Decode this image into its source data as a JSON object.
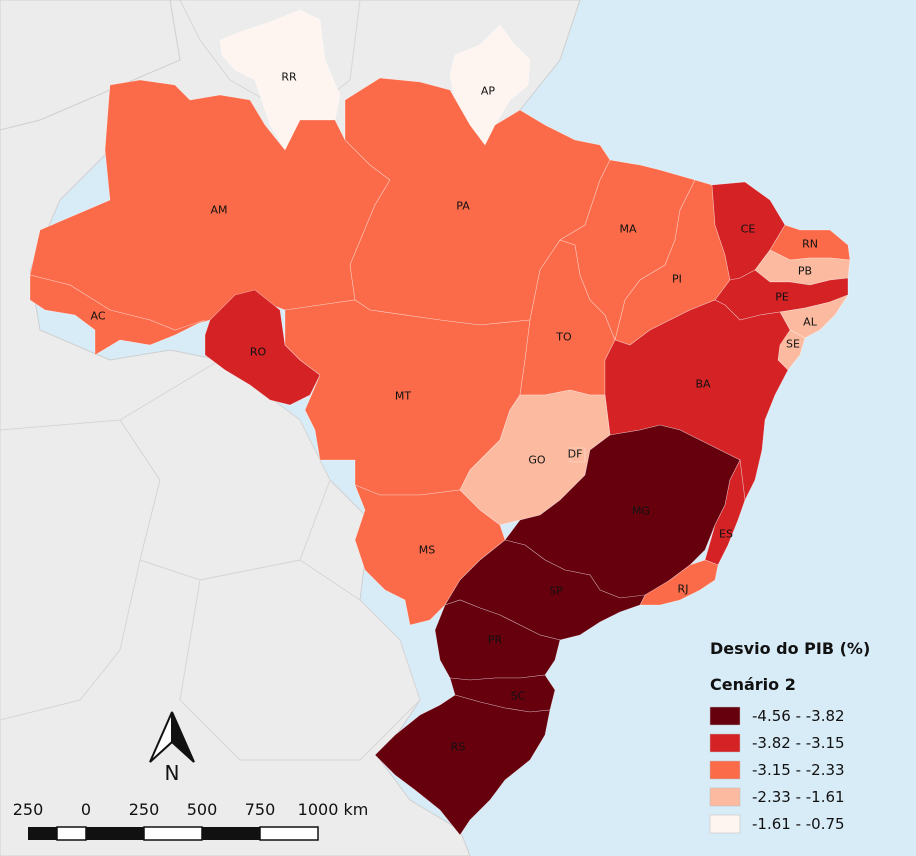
{
  "legend": {
    "title": "Desvio do PIB (%)",
    "subtitle": "Cenário 2",
    "classes": [
      {
        "label": "-4.56 - -3.82",
        "color": "#67000d"
      },
      {
        "label": "-3.82 - -3.15",
        "color": "#d42225"
      },
      {
        "label": "-3.15 - -2.33",
        "color": "#fb6b4a"
      },
      {
        "label": "-2.33 - -1.61",
        "color": "#fcbba1"
      },
      {
        "label": "-1.61 - -0.75",
        "color": "#fff5f0"
      }
    ]
  },
  "north_arrow": {
    "label": "N"
  },
  "scale_bar": {
    "labels": [
      "250",
      "0",
      "250",
      "500",
      "750",
      "1000 km"
    ]
  },
  "states": [
    {
      "code": "RR",
      "class": 4
    },
    {
      "code": "AP",
      "class": 4
    },
    {
      "code": "AM",
      "class": 2
    },
    {
      "code": "PA",
      "class": 2
    },
    {
      "code": "AC",
      "class": 2
    },
    {
      "code": "RO",
      "class": 1
    },
    {
      "code": "MT",
      "class": 2
    },
    {
      "code": "TO",
      "class": 2
    },
    {
      "code": "MA",
      "class": 2
    },
    {
      "code": "PI",
      "class": 2
    },
    {
      "code": "CE",
      "class": 1
    },
    {
      "code": "RN",
      "class": 2
    },
    {
      "code": "PB",
      "class": 3
    },
    {
      "code": "PE",
      "class": 1
    },
    {
      "code": "AL",
      "class": 3
    },
    {
      "code": "SE",
      "class": 3
    },
    {
      "code": "BA",
      "class": 1
    },
    {
      "code": "GO",
      "class": 3
    },
    {
      "code": "DF",
      "class": 3
    },
    {
      "code": "MG",
      "class": 0
    },
    {
      "code": "ES",
      "class": 1
    },
    {
      "code": "RJ",
      "class": 2
    },
    {
      "code": "MS",
      "class": 2
    },
    {
      "code": "SP",
      "class": 0
    },
    {
      "code": "PR",
      "class": 0
    },
    {
      "code": "SC",
      "class": 0
    },
    {
      "code": "RS",
      "class": 0
    }
  ]
}
